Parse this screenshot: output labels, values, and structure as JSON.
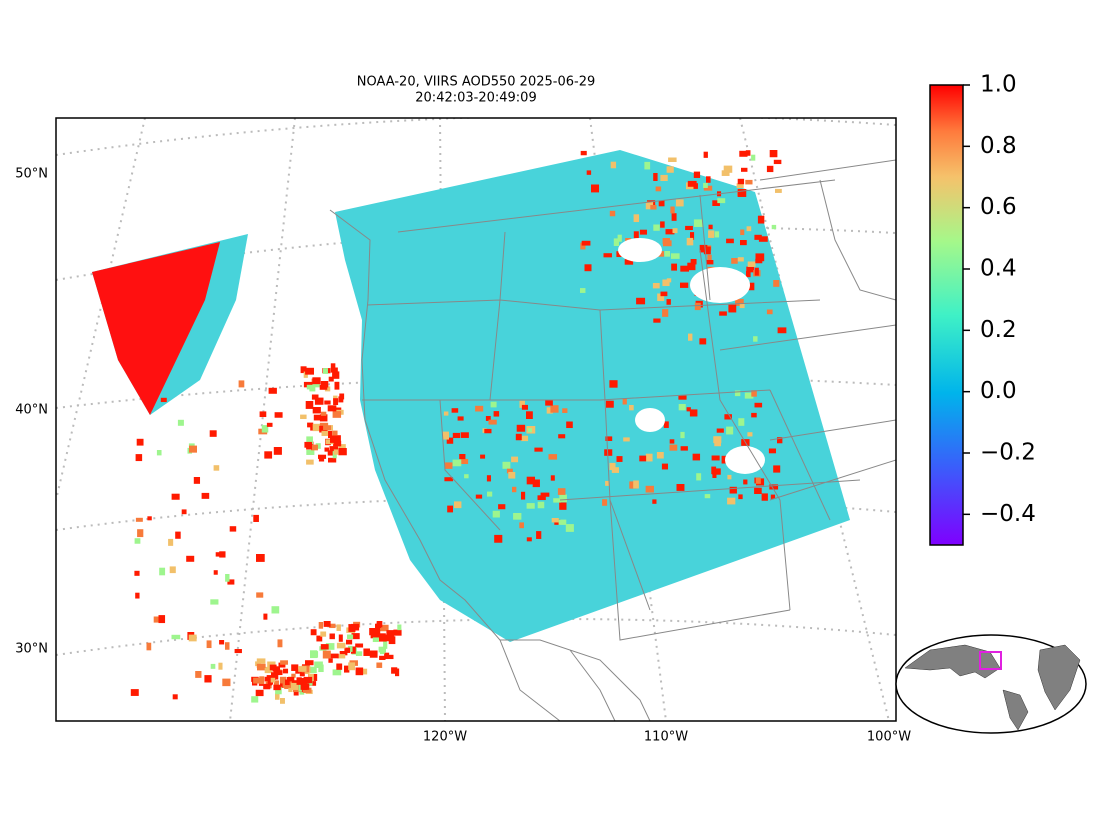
{
  "map": {
    "title": [
      "NOAA-20, VIIRS AOD550 2025-06-29",
      "20:42:03-20:49:09"
    ],
    "lat_labels": [
      "50°N",
      "40°N",
      "30°N"
    ],
    "lon_labels": [
      "120°W",
      "110°W",
      "100°W"
    ],
    "colorbar": {
      "lim": [
        -0.5,
        1.0
      ],
      "ticks": [
        {
          "value": 1,
          "label": "1.0"
        },
        0.8,
        0.6,
        0.4,
        0.2,
        {
          "value": 0,
          "label": "0.0"
        },
        {
          "value": -0.2,
          "label": "−0.2"
        },
        {
          "value": -0.4,
          "label": "−0.4"
        }
      ]
    }
  }
}
